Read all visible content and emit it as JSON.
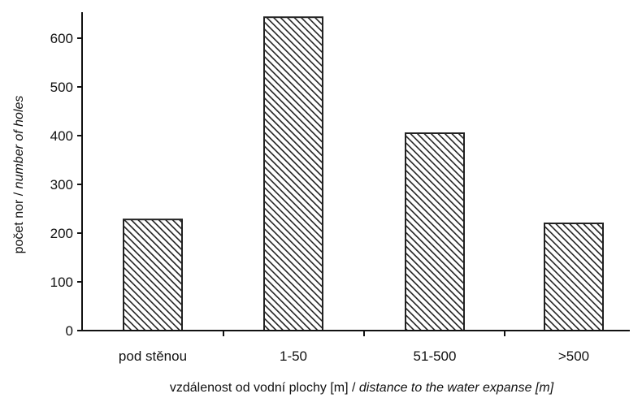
{
  "chart_data": {
    "type": "bar",
    "categories": [
      "pod stěnou",
      "1-50",
      "51-500",
      ">500"
    ],
    "values": [
      228,
      643,
      405,
      220
    ],
    "ylim": [
      0,
      650
    ],
    "yticks": [
      0,
      100,
      200,
      300,
      400,
      500,
      600
    ],
    "ylabel": {
      "cz": "počet nor",
      "sep": " / ",
      "en": "number of holes"
    },
    "xlabel": {
      "cz": "vzdálenost od vodní plochy [m]",
      "sep": " / ",
      "en": "distance to the water expanse [m]"
    },
    "grid": false,
    "legend": "none",
    "colors": {
      "bar_fill": "#ffffff",
      "bar_hatch": "#222222",
      "axis": "#111111"
    }
  }
}
